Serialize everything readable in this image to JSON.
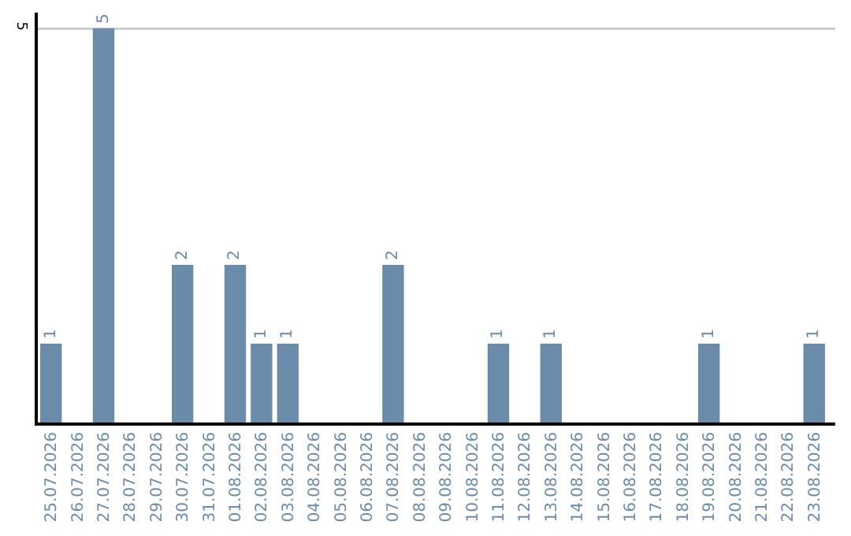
{
  "chart_data": {
    "type": "bar",
    "categories": [
      "25.07.2026",
      "26.07.2026",
      "27.07.2026",
      "28.07.2026",
      "29.07.2026",
      "30.07.2026",
      "31.07.2026",
      "01.08.2026",
      "02.08.2026",
      "03.08.2026",
      "04.08.2026",
      "05.08.2026",
      "06.08.2026",
      "07.08.2026",
      "08.08.2026",
      "09.08.2026",
      "10.08.2026",
      "11.08.2026",
      "12.08.2026",
      "13.08.2026",
      "14.08.2026",
      "15.08.2026",
      "16.08.2026",
      "17.08.2026",
      "18.08.2026",
      "19.08.2026",
      "20.08.2026",
      "21.08.2026",
      "22.08.2026",
      "23.08.2026"
    ],
    "values": [
      1,
      0,
      5,
      0,
      0,
      2,
      0,
      2,
      1,
      1,
      0,
      0,
      0,
      2,
      0,
      0,
      0,
      1,
      0,
      1,
      0,
      0,
      0,
      0,
      0,
      1,
      0,
      0,
      0,
      1
    ],
    "value_labels": [
      "1",
      null,
      "5",
      null,
      null,
      "2",
      null,
      "2",
      "1",
      "1",
      null,
      null,
      null,
      "2",
      null,
      null,
      null,
      "1",
      null,
      "1",
      null,
      null,
      null,
      null,
      null,
      "1",
      null,
      null,
      null,
      "1"
    ],
    "color": "#6a8caa",
    "ylim": [
      0,
      5.2
    ],
    "yticks": [
      5
    ],
    "grid": "y",
    "legend": false
  }
}
